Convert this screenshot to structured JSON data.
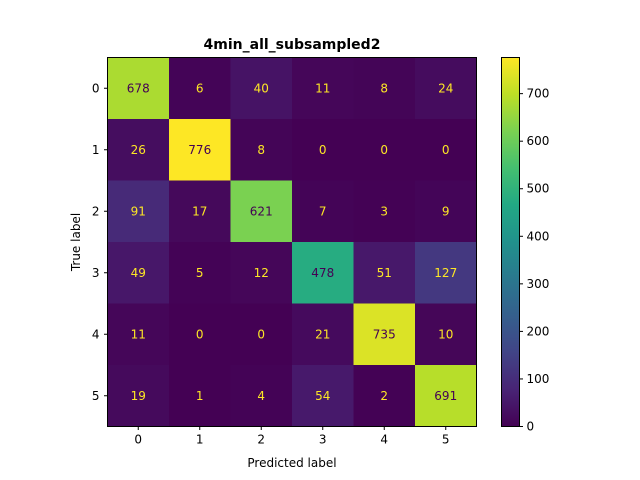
{
  "chart_data": {
    "type": "heatmap",
    "title": "4min_all_subsampled2",
    "xlabel": "Predicted label",
    "ylabel": "True label",
    "x_tick_labels": [
      "0",
      "1",
      "2",
      "3",
      "4",
      "5"
    ],
    "y_tick_labels": [
      "0",
      "1",
      "2",
      "3",
      "4",
      "5"
    ],
    "matrix": [
      [
        678,
        6,
        40,
        11,
        8,
        24
      ],
      [
        26,
        776,
        8,
        0,
        0,
        0
      ],
      [
        91,
        17,
        621,
        7,
        3,
        9
      ],
      [
        49,
        5,
        12,
        478,
        51,
        127
      ],
      [
        11,
        0,
        0,
        21,
        735,
        10
      ],
      [
        19,
        1,
        4,
        54,
        2,
        691
      ]
    ],
    "colorbar": {
      "colormap": "viridis",
      "range": [
        0,
        776
      ],
      "tick_values": [
        0,
        100,
        200,
        300,
        400,
        500,
        600,
        700
      ],
      "tick_labels": [
        "0",
        "100",
        "200",
        "300",
        "400",
        "500",
        "600",
        "700"
      ]
    },
    "text_color_light": "#fde725",
    "text_color_dark": "#440154"
  }
}
